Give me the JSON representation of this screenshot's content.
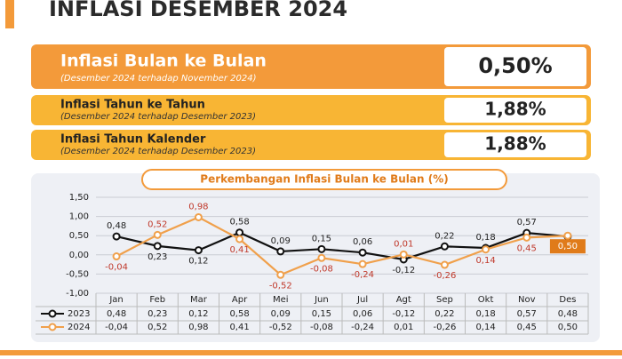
{
  "title": "INFLASI DESEMBER 2024",
  "cards": [
    {
      "label": "Inflasi Bulan ke Bulan",
      "sub": "(Desember 2024 terhadap November 2024)",
      "value": "0,50%"
    },
    {
      "label": "Inflasi Tahun ke Tahun",
      "sub": "(Desember 2024 terhadap Desember 2023)",
      "value": "1,88%"
    },
    {
      "label": "Inflasi Tahun Kalender",
      "sub": "(Desember 2024 terhadap Desember 2023)",
      "value": "1,88%"
    }
  ],
  "chart_data": {
    "type": "line",
    "title": "Perkembangan Inflasi Bulan ke Bulan (%)",
    "categories": [
      "Jan",
      "Feb",
      "Mar",
      "Apr",
      "Mei",
      "Jun",
      "Jul",
      "Agt",
      "Sep",
      "Okt",
      "Nov",
      "Des"
    ],
    "series": [
      {
        "name": "2023",
        "color": "#111111",
        "values": [
          0.48,
          0.23,
          0.12,
          0.58,
          0.09,
          0.15,
          0.06,
          -0.12,
          0.22,
          0.18,
          0.57,
          0.48
        ],
        "value_labels": [
          "0,48",
          "0,23",
          "0,12",
          "0,58",
          "0,09",
          "0,15",
          "0,06",
          "-0,12",
          "0,22",
          "0,18",
          "0,57",
          "0,48"
        ]
      },
      {
        "name": "2024",
        "color": "#f0a04b",
        "values": [
          -0.04,
          0.52,
          0.98,
          0.41,
          -0.52,
          -0.08,
          -0.24,
          0.01,
          -0.26,
          0.14,
          0.45,
          0.5
        ],
        "value_labels": [
          "-0,04",
          "0,52",
          "0,98",
          "0,41",
          "-0,52",
          "-0,08",
          "-0,24",
          "0,01",
          "-0,26",
          "0,14",
          "0,45",
          "0,50"
        ]
      }
    ],
    "ylim": [
      -1,
      1.5
    ],
    "yticks": [
      {
        "value": -1,
        "label": "-1,00"
      },
      {
        "value": -0.5,
        "label": "-0,50"
      },
      {
        "value": 0,
        "label": "0,00"
      },
      {
        "value": 0.5,
        "label": "0,50"
      },
      {
        "value": 1,
        "label": "1,00"
      },
      {
        "value": 1.5,
        "label": "1,50"
      }
    ],
    "grid": true
  }
}
